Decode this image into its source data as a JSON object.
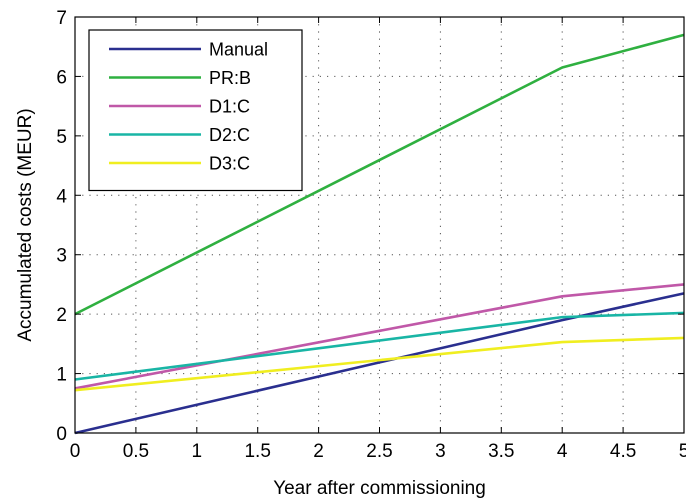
{
  "chart_data": {
    "type": "line",
    "xlabel": "Year after commissioning",
    "ylabel": "Accumulated costs (MEUR)",
    "xlim": [
      0,
      5
    ],
    "ylim": [
      0,
      7
    ],
    "xticks": [
      "0",
      "0.5",
      "1",
      "1.5",
      "2",
      "2.5",
      "3",
      "3.5",
      "4",
      "4.5",
      "5"
    ],
    "yticks": [
      "0",
      "1",
      "2",
      "3",
      "4",
      "5",
      "6",
      "7"
    ],
    "grid": true,
    "grid_style": "dotted",
    "legend_position": "top-left",
    "series": [
      {
        "name": "Manual",
        "color": "#2a2f8f",
        "x": [
          0,
          4,
          5
        ],
        "y": [
          0.0,
          1.9,
          2.35
        ]
      },
      {
        "name": "PR:B",
        "color": "#2fb040",
        "x": [
          0,
          4,
          5
        ],
        "y": [
          2.0,
          6.15,
          6.7
        ]
      },
      {
        "name": "D1:C",
        "color": "#c058a8",
        "x": [
          0,
          4,
          5
        ],
        "y": [
          0.75,
          2.3,
          2.5
        ]
      },
      {
        "name": "D2:C",
        "color": "#19b5a5",
        "x": [
          0,
          4,
          5
        ],
        "y": [
          0.9,
          1.95,
          2.02
        ]
      },
      {
        "name": "D3:C",
        "color": "#f0ee20",
        "x": [
          0,
          4,
          5
        ],
        "y": [
          0.72,
          1.53,
          1.6
        ]
      }
    ]
  }
}
